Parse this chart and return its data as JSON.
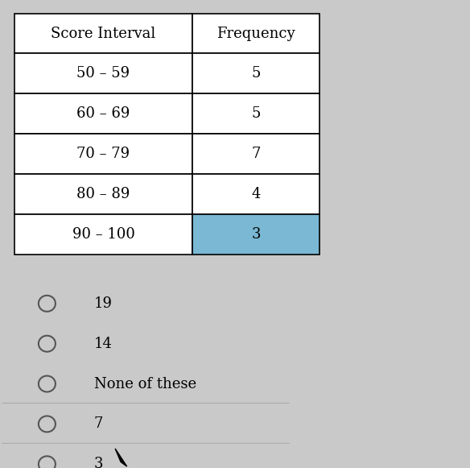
{
  "table_headers": [
    "Score Interval",
    "Frequency"
  ],
  "table_rows": [
    [
      "50 – 59",
      "5"
    ],
    [
      "60 – 69",
      "5"
    ],
    [
      "70 – 79",
      "7"
    ],
    [
      "80 – 89",
      "4"
    ],
    [
      "90 – 100",
      "3"
    ]
  ],
  "highlight_row": 4,
  "highlight_color": "#7ab8d4",
  "options": [
    "19",
    "14",
    "None of these",
    "7",
    "3"
  ],
  "separator_before": [
    3,
    4
  ],
  "bg_color": "#c9c9c9"
}
